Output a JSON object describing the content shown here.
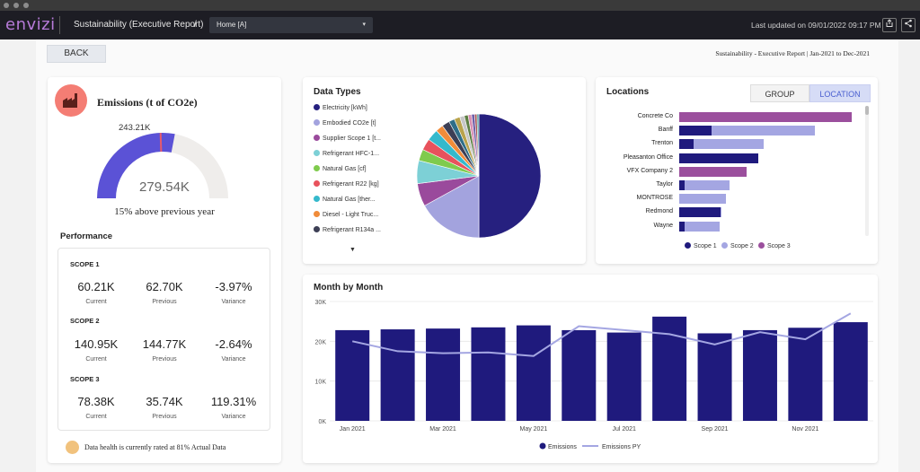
{
  "header": {
    "logo": "envizi",
    "breadcrumb": "Sustainability (Executive Report)",
    "breadcrumb_sep": "/",
    "selector_value": "Home [A]",
    "selector_caret": "▾",
    "last_updated": "Last updated on 09/01/2022 09:17 PM",
    "export_icon": "share-box-icon",
    "share_icon": "share-nodes-icon"
  },
  "toolbar": {
    "back_label": "BACK",
    "report_title": "Sustainability - Executive Report | Jan-2021 to Dec-2021"
  },
  "emissions": {
    "icon": "factory-icon",
    "title": "Emissions (t of CO2e)",
    "gauge_value": "279.54K",
    "gauge_target": "243.21K",
    "gauge_fill_fraction": 0.56,
    "gauge_target_fraction": 0.49,
    "comparison": "15% above previous year",
    "performance_title": "Performance",
    "scopes": [
      {
        "label": "SCOPE 1",
        "current": "60.21K",
        "previous": "62.70K",
        "variance": "-3.97%"
      },
      {
        "label": "SCOPE 2",
        "current": "140.95K",
        "previous": "144.77K",
        "variance": "-2.64%"
      },
      {
        "label": "SCOPE 3",
        "current": "78.38K",
        "previous": "35.74K",
        "variance": "119.31%"
      }
    ],
    "metric_labels": {
      "current": "Current",
      "previous": "Previous",
      "variance": "Variance"
    },
    "health_text": "Data health is currently rated at 81% Actual Data"
  },
  "data_types": {
    "title": "Data Types",
    "more_icon": "▼",
    "legend": [
      {
        "label": "Electricity [kWh]",
        "color": "#26207f"
      },
      {
        "label": "Embodied CO2e [t]",
        "color": "#a3a3de"
      },
      {
        "label": "Supplier Scope 1 [t...",
        "color": "#9a4a9c"
      },
      {
        "label": "Refrigerant HFC-1...",
        "color": "#7dd0d6"
      },
      {
        "label": "Natural Gas [cf]",
        "color": "#7fcb4d"
      },
      {
        "label": "Refrigerant R22 [kg]",
        "color": "#e8525c"
      },
      {
        "label": "Natural Gas [ther...",
        "color": "#35b9cc"
      },
      {
        "label": "Diesel - Light Truc...",
        "color": "#f08c3a"
      },
      {
        "label": "Refrigerant R134a ...",
        "color": "#3d3f55"
      }
    ],
    "pie_values": [
      50,
      17,
      6,
      6,
      3,
      3,
      3,
      2,
      2,
      1.5,
      1.5,
      1.2,
      1,
      0.9,
      0.8,
      0.6,
      0.5
    ],
    "pie_extra_colors": [
      "#2f6e88",
      "#b9a34b",
      "#c7c7c7",
      "#5d7f43",
      "#d98fb2",
      "#6f5ea8",
      "#a85353",
      "#4e9ea0"
    ]
  },
  "locations": {
    "title": "Locations",
    "toggle_group": "GROUP",
    "toggle_location": "LOCATION",
    "rows": [
      {
        "name": "Concrete Co",
        "scope1": 0,
        "scope2": 0,
        "scope3": 37
      },
      {
        "name": "Banff",
        "scope1": 7,
        "scope2": 22,
        "scope3": 0
      },
      {
        "name": "Trenton",
        "scope1": 3,
        "scope2": 15,
        "scope3": 0
      },
      {
        "name": "Pleasanton Office",
        "scope1": 17,
        "scope2": 0,
        "scope3": 0
      },
      {
        "name": "VFX Company 2",
        "scope1": 0,
        "scope2": 0,
        "scope3": 14.5
      },
      {
        "name": "Taylor",
        "scope1": 1.2,
        "scope2": 9.5,
        "scope3": 0
      },
      {
        "name": "MONTROSE",
        "scope1": 0,
        "scope2": 10,
        "scope3": 0
      },
      {
        "name": "Redmond",
        "scope1": 8.8,
        "scope2": 0.3,
        "scope3": 0
      },
      {
        "name": "Wayne",
        "scope1": 1.2,
        "scope2": 7.5,
        "scope3": 0
      }
    ],
    "legend": [
      {
        "label": "Scope 1",
        "color": "#1f1a7d"
      },
      {
        "label": "Scope 2",
        "color": "#a4a6e2"
      },
      {
        "label": "Scope 3",
        "color": "#9b4f9d"
      }
    ]
  },
  "chart_data": {
    "type": "bar",
    "title": "Month by Month",
    "categories": [
      "Jan 2021",
      "Feb 2021",
      "Mar 2021",
      "Apr 2021",
      "May 2021",
      "Jun 2021",
      "Jul 2021",
      "Aug 2021",
      "Sep 2021",
      "Oct 2021",
      "Nov 2021",
      "Dec 2021"
    ],
    "x_tick_labels": [
      "Jan 2021",
      "Mar 2021",
      "May 2021",
      "Jul 2021",
      "Sep 2021",
      "Nov 2021"
    ],
    "y_tick_labels": [
      "30K",
      "20K",
      "10K",
      "0K"
    ],
    "ylim": [
      0,
      30000
    ],
    "series": [
      {
        "name": "Emissions",
        "type": "bar",
        "color": "#1f1a7d",
        "values": [
          22800,
          23000,
          23200,
          23500,
          24000,
          22800,
          22200,
          26200,
          22000,
          22800,
          23400,
          24800
        ]
      },
      {
        "name": "Emissions PY",
        "type": "line",
        "color": "#a4a6e2",
        "values": [
          20000,
          17500,
          17000,
          17200,
          16300,
          23800,
          22800,
          21800,
          19200,
          22300,
          20500,
          27000
        ]
      }
    ],
    "grid": true,
    "legend_position": "bottom"
  }
}
